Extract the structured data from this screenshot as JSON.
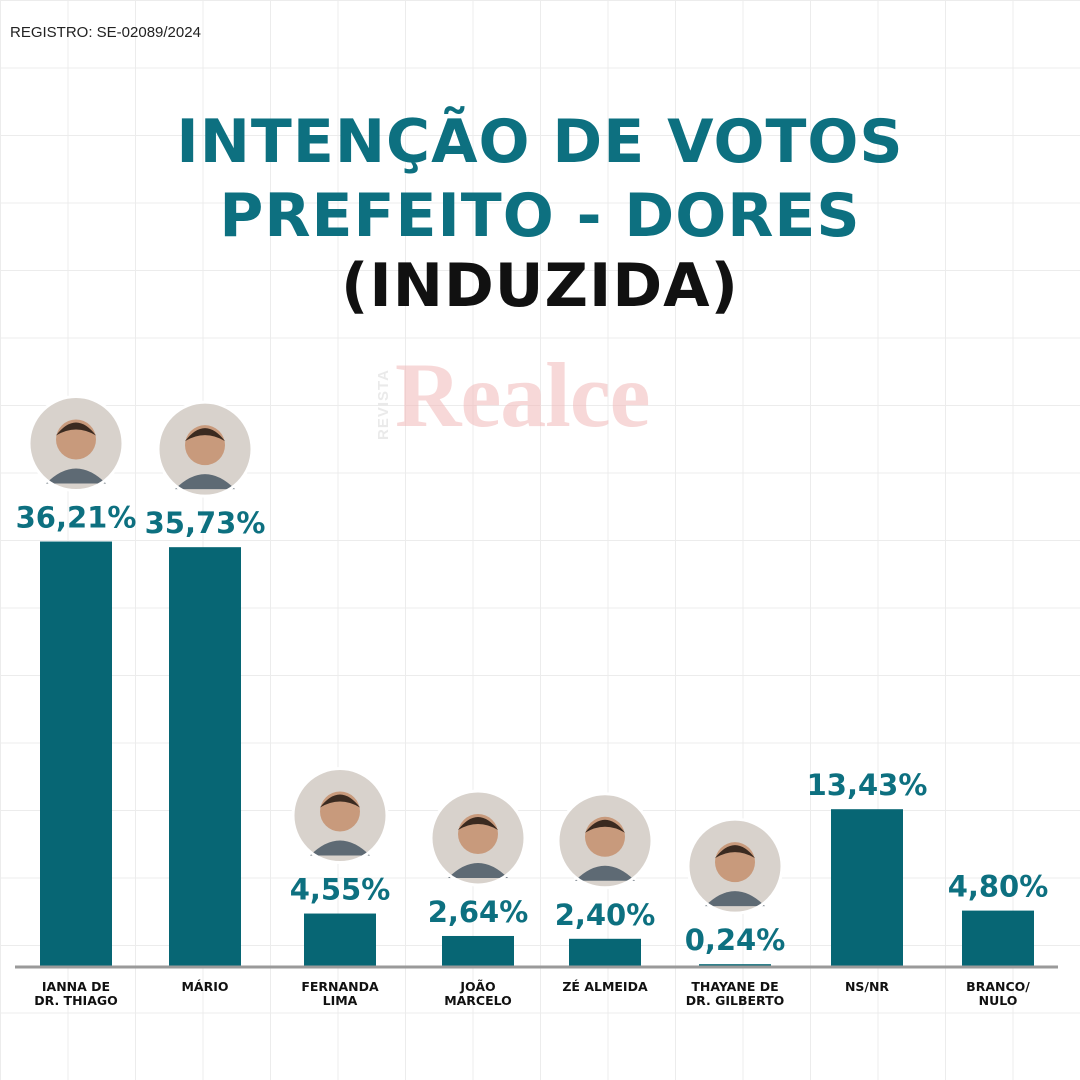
{
  "registro": "REGISTRO: SE-02089/2024",
  "watermark": {
    "small": "REVISTA",
    "large": "Realce"
  },
  "chart_data": {
    "type": "bar",
    "title_lines": [
      "INTENÇÃO DE VOTOS",
      "PREFEITO - DORES",
      "(INDUZIDA)"
    ],
    "categories": [
      [
        "IANNA DE",
        "DR. THIAGO"
      ],
      [
        "MÁRIO"
      ],
      [
        "FERNANDA",
        "LIMA"
      ],
      [
        "JOÃO",
        "MARCELO"
      ],
      [
        "ZÉ ALMEIDA"
      ],
      [
        "THAYANE DE",
        "DR. GILBERTO"
      ],
      [
        "NS/NR"
      ],
      [
        "BRANCO/",
        "NULO"
      ]
    ],
    "values": [
      36.21,
      35.73,
      4.55,
      2.64,
      2.4,
      0.24,
      13.43,
      4.8
    ],
    "value_labels": [
      "36,21%",
      "35,73%",
      "4,55%",
      "2,64%",
      "2,40%",
      "0,24%",
      "13,43%",
      "4,80%"
    ],
    "has_photo": [
      true,
      true,
      true,
      true,
      true,
      true,
      false,
      false
    ],
    "bar_color": "#076674",
    "label_color": "#0d7080",
    "xlabel": "",
    "ylabel": "",
    "grid": true
  }
}
